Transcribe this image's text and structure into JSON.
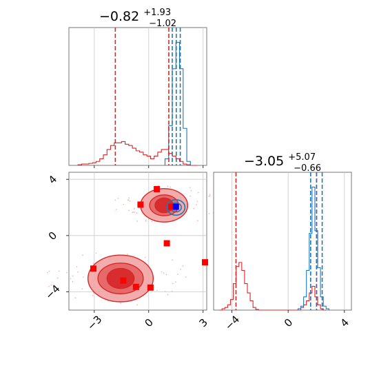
{
  "chart_data": [
    {
      "type": "histogram",
      "panel": "top-left 1D marginal (parameter 1)",
      "title": {
        "main": "−0.82",
        "sup": "+1.93",
        "sub": "−1.02"
      },
      "xlim": [
        -4.4,
        3.2
      ],
      "x_ticks": [
        -3,
        0,
        3
      ],
      "series": [
        {
          "color": "#d62728",
          "bins_x": [
            -3.8,
            -3.6,
            -3.4,
            -3.2,
            -3.0,
            -2.8,
            -2.6,
            -2.4,
            -2.2,
            -2.0,
            -1.8,
            -1.6,
            -1.4,
            -1.2,
            -1.0,
            -0.8,
            -0.6,
            -0.4,
            -0.2,
            0.0,
            0.2,
            0.4,
            0.6,
            0.8,
            1.0,
            1.2,
            1.4,
            1.6,
            1.8,
            2.0,
            2.2,
            2.4,
            2.6
          ],
          "heights": [
            0.005,
            0.01,
            0.01,
            0.015,
            0.02,
            0.03,
            0.05,
            0.08,
            0.12,
            0.15,
            0.17,
            0.17,
            0.18,
            0.16,
            0.15,
            0.13,
            0.11,
            0.1,
            0.08,
            0.07,
            0.05,
            0.07,
            0.1,
            0.12,
            0.12,
            0.09,
            0.07,
            0.05,
            0.03,
            0.01,
            0.005,
            0.0,
            0.0
          ],
          "quantile_lines": [
            -1.84,
            1.11
          ]
        },
        {
          "color": "#1f77b4",
          "bins_x": [
            1.0,
            1.2,
            1.4,
            1.6,
            1.8,
            2.0,
            2.2
          ],
          "heights": [
            0.05,
            0.3,
            0.73,
            0.93,
            0.73,
            0.28,
            0.03
          ],
          "quantile_lines": [
            1.3,
            1.52,
            1.74
          ]
        }
      ]
    },
    {
      "type": "scatter",
      "panel": "bottom-left 2D joint (parameter 1 vs parameter 2)",
      "xlim": [
        -4.4,
        3.2
      ],
      "ylim": [
        -5.3,
        4.5
      ],
      "x_ticks": [
        -3,
        0,
        3
      ],
      "y_ticks": [
        -4,
        0,
        4
      ],
      "x_tick_labels": [
        "−3",
        "0",
        "3"
      ],
      "y_tick_labels": [
        "4",
        "0",
        "−4"
      ],
      "series": [
        {
          "name_hint": "red posterior contours",
          "color": "#d62728",
          "clusters": [
            {
              "center": [
                0.85,
                2.15
              ],
              "rx": [
                2.6,
                1.6,
                1.0
              ],
              "ry": [
                1.25,
                0.78,
                0.55
              ]
            },
            {
              "center": [
                -1.55,
                -3.05
              ],
              "rx": [
                3.6,
                2.5,
                1.5
              ],
              "ry": [
                1.75,
                1.15,
                0.75
              ]
            }
          ]
        },
        {
          "name_hint": "blue posterior contours",
          "color": "#1f77b4",
          "clusters": [
            {
              "center": [
                1.5,
                2.0
              ],
              "rx": [
                0.5,
                0.3
              ],
              "ry": [
                0.55,
                0.32
              ]
            }
          ]
        },
        {
          "name_hint": "red square markers",
          "color": "#ff0000",
          "points": [
            [
              0.45,
              3.3
            ],
            [
              -0.45,
              2.2
            ],
            [
              1.25,
              2.05
            ],
            [
              1.0,
              -0.55
            ],
            [
              -3.05,
              -2.35
            ],
            [
              -1.4,
              -3.2
            ],
            [
              -0.7,
              -3.65
            ],
            [
              0.1,
              -3.7
            ],
            [
              3.25,
              -1.9
            ]
          ]
        },
        {
          "name_hint": "blue square marker",
          "color": "#0000ff",
          "points": [
            [
              1.5,
              2.05
            ]
          ]
        }
      ]
    },
    {
      "type": "histogram",
      "panel": "bottom-right 1D marginal (parameter 2)",
      "title": {
        "main": "−3.05",
        "sup": "+5.07",
        "sub": "−0.66"
      },
      "xlim": [
        -5.3,
        4.5
      ],
      "x_ticks": [
        -4,
        0,
        4
      ],
      "x_tick_labels": [
        "−4",
        "0",
        "4"
      ],
      "series": [
        {
          "color": "#d62728",
          "bins_x": [
            -4.8,
            -4.6,
            -4.4,
            -4.2,
            -4.0,
            -3.8,
            -3.6,
            -3.4,
            -3.2,
            -3.0,
            -2.8,
            -2.6,
            -2.4,
            -2.2,
            -2.0,
            -1.8,
            -1.6,
            -1.4,
            -1.2,
            -1.0,
            -0.8,
            -0.6,
            -0.4,
            -0.2,
            0.0,
            0.2,
            0.4,
            0.6,
            0.8,
            1.0,
            1.2,
            1.4,
            1.6,
            1.8,
            2.0,
            2.2,
            2.4,
            2.6
          ],
          "heights": [
            0.0,
            0.01,
            0.02,
            0.04,
            0.08,
            0.2,
            0.33,
            0.36,
            0.3,
            0.2,
            0.13,
            0.07,
            0.02,
            0.005,
            0.0,
            0.0,
            0.0,
            0.0,
            0.0,
            0.0,
            0.0,
            0.0,
            0.0,
            0.0,
            0.0,
            0.0,
            0.0,
            0.0,
            0.0,
            0.02,
            0.04,
            0.07,
            0.13,
            0.18,
            0.1,
            0.04,
            0.01,
            0.0
          ],
          "quantile_lines": [
            -3.71,
            2.02
          ]
        },
        {
          "color": "#1f77b4",
          "bins_x": [
            0.8,
            1.0,
            1.2,
            1.4,
            1.6,
            1.8,
            2.0,
            2.2,
            2.4,
            2.6,
            2.8
          ],
          "heights": [
            0.01,
            0.03,
            0.1,
            0.3,
            0.58,
            0.93,
            0.6,
            0.32,
            0.1,
            0.03,
            0.01
          ],
          "quantile_lines": [
            1.6,
            2.02,
            2.42
          ]
        }
      ]
    }
  ]
}
